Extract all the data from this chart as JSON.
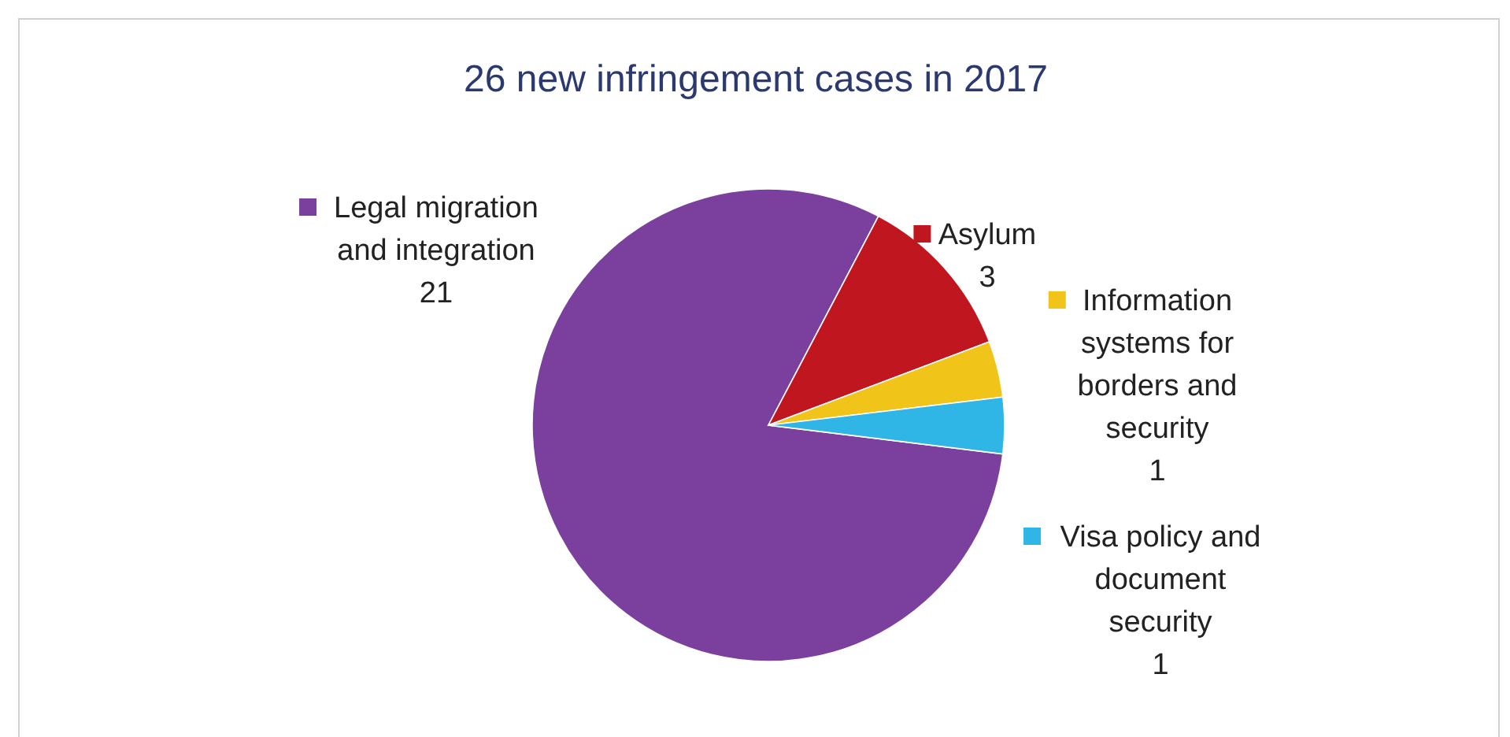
{
  "chart_data": {
    "type": "pie",
    "title": "26 new infringement cases in 2017",
    "categories": [
      "Legal migration and integration",
      "Asylum",
      "Information systems for borders and security",
      "Visa policy and document security"
    ],
    "values": [
      21,
      3,
      1,
      1
    ],
    "colors": [
      "#7b3f9e",
      "#c0161f",
      "#f0c419",
      "#2fb5e6"
    ],
    "data_labels": true,
    "legend": "right"
  }
}
